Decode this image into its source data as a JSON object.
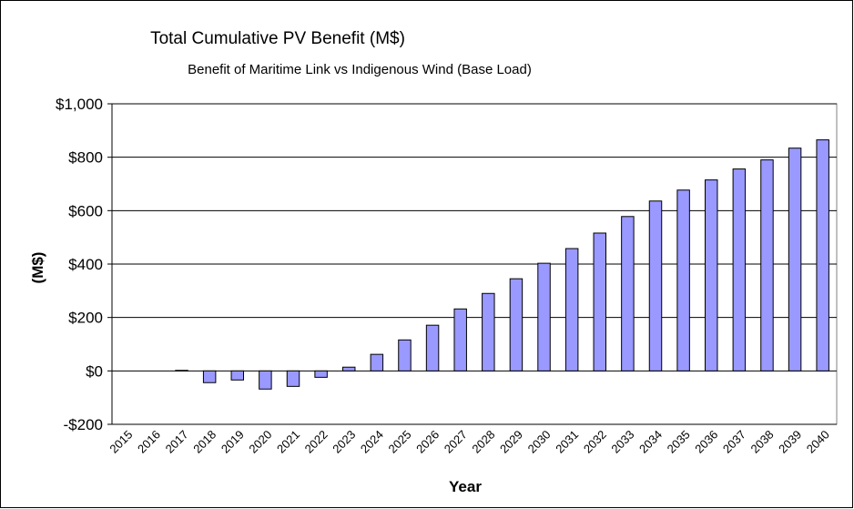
{
  "chart_data": {
    "type": "bar",
    "title": "Total Cumulative PV Benefit (M$)",
    "subtitle": "Benefit of Maritime Link vs  Indigenous Wind (Base Load)",
    "x_label": "Year",
    "y_label": "(M$)",
    "categories": [
      "2015",
      "2016",
      "2017",
      "2018",
      "2019",
      "2020",
      "2021",
      "2022",
      "2023",
      "2024",
      "2025",
      "2026",
      "2027",
      "2028",
      "2029",
      "2030",
      "2031",
      "2032",
      "2033",
      "2034",
      "2035",
      "2036",
      "2037",
      "2038",
      "2039",
      "2040"
    ],
    "values": [
      0,
      0,
      2,
      -44,
      -34,
      -68,
      -58,
      -24,
      14,
      62,
      116,
      171,
      232,
      290,
      345,
      403,
      458,
      516,
      578,
      636,
      677,
      715,
      756,
      790,
      834,
      865
    ],
    "color": "#9999ff",
    "ylim": [
      -200,
      1000
    ],
    "yticks": [
      {
        "value": -200,
        "label": "-$200"
      },
      {
        "value": 0,
        "label": "$0"
      },
      {
        "value": 200,
        "label": "$200"
      },
      {
        "value": 400,
        "label": "$400"
      },
      {
        "value": 600,
        "label": "$600"
      },
      {
        "value": 800,
        "label": "$800"
      },
      {
        "value": 1000,
        "label": "$1,000"
      }
    ],
    "grid": true
  }
}
